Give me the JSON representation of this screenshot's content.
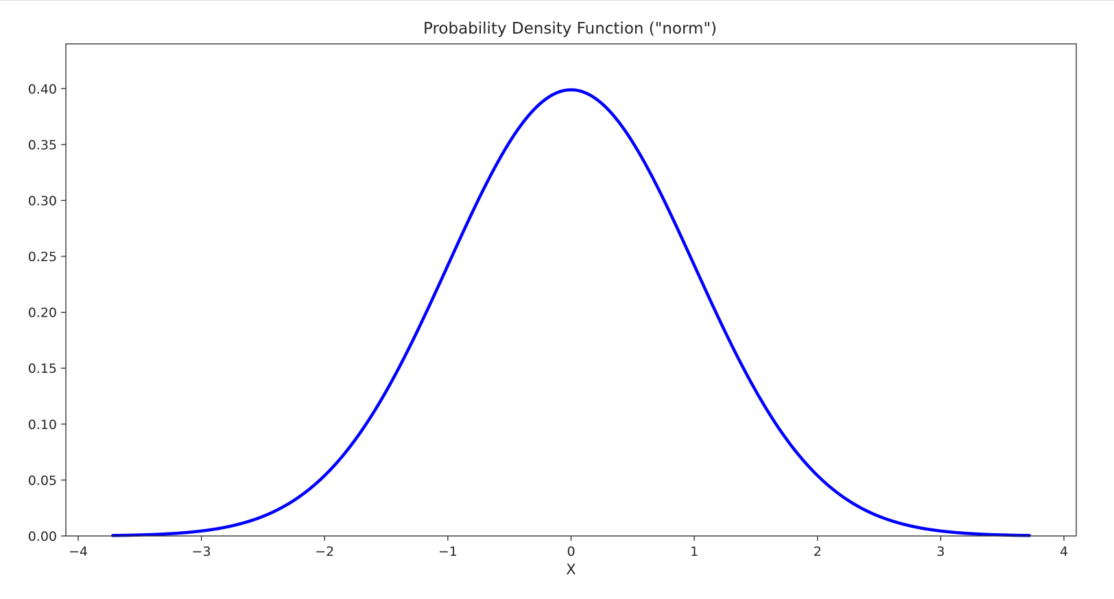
{
  "chart_data": {
    "type": "line",
    "title": "Probability Density Function (\"norm\")",
    "xlabel": "X",
    "ylabel": "",
    "xlim": [
      -4.1,
      4.1
    ],
    "ylim": [
      0.0,
      0.44
    ],
    "x_ticks": [
      -4,
      -3,
      -2,
      -1,
      0,
      1,
      2,
      3,
      4
    ],
    "x_tick_labels": [
      "−4",
      "−3",
      "−2",
      "−1",
      "0",
      "1",
      "2",
      "3",
      "4"
    ],
    "y_ticks": [
      0.0,
      0.05,
      0.1,
      0.15,
      0.2,
      0.25,
      0.3,
      0.35,
      0.4
    ],
    "y_tick_labels": [
      "0.00",
      "0.05",
      "0.10",
      "0.15",
      "0.20",
      "0.25",
      "0.30",
      "0.35",
      "0.40"
    ],
    "grid": false,
    "legend": "none",
    "series": [
      {
        "color": "#0000ff",
        "x": [
          -3.72,
          -3.5,
          -3.25,
          -3.0,
          -2.75,
          -2.5,
          -2.25,
          -2.0,
          -1.75,
          -1.5,
          -1.25,
          -1.0,
          -0.75,
          -0.5,
          -0.25,
          0.0,
          0.25,
          0.5,
          0.75,
          1.0,
          1.25,
          1.5,
          1.75,
          2.0,
          2.25,
          2.5,
          2.75,
          3.0,
          3.25,
          3.5,
          3.72
        ],
        "y": [
          0.0004,
          0.0009,
          0.002,
          0.0044,
          0.0091,
          0.0175,
          0.0317,
          0.054,
          0.0863,
          0.1295,
          0.1826,
          0.242,
          0.3011,
          0.3521,
          0.3867,
          0.3989,
          0.3867,
          0.3521,
          0.3011,
          0.242,
          0.1826,
          0.1295,
          0.0863,
          0.054,
          0.0317,
          0.0175,
          0.0091,
          0.0044,
          0.002,
          0.0009,
          0.0004
        ]
      }
    ]
  }
}
